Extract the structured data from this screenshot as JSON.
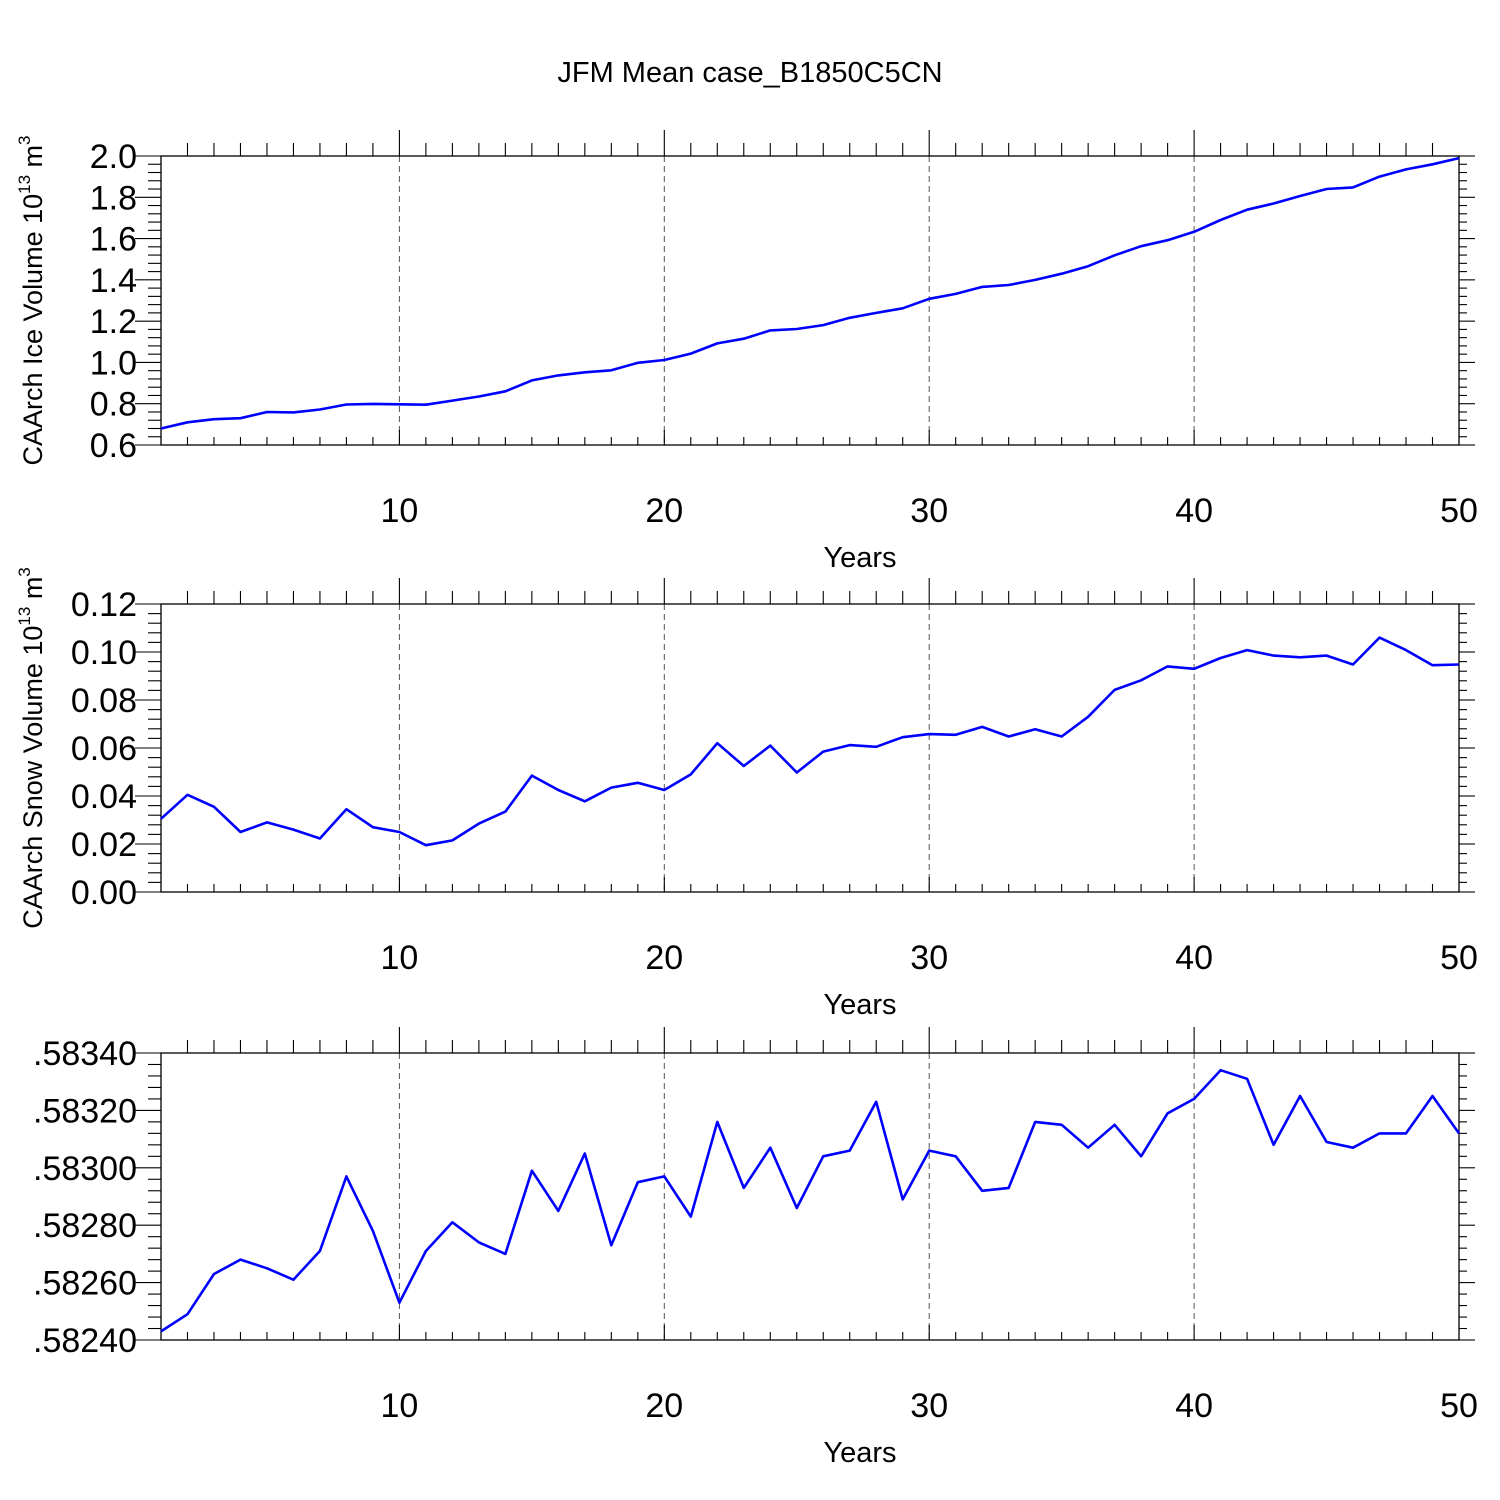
{
  "title": "JFM Mean case_B1850C5CN",
  "colors": {
    "series": "#0000ff",
    "axis": "#000000",
    "grid": "#555555"
  },
  "chart_data": [
    {
      "type": "line",
      "ylabel": "CAArch Ice Volume 10",
      "ylabel_sup": "13",
      "ylabel_unit": " m",
      "ylabel_unit_sup": "3",
      "xlabel": "Years",
      "xlim": [
        1,
        50
      ],
      "ylim": [
        0.6,
        2.0
      ],
      "xticks": [
        10,
        20,
        30,
        40,
        50
      ],
      "xtick_labels": [
        "10",
        "20",
        "30",
        "40",
        "50"
      ],
      "yticks": [
        0.6,
        0.8,
        1.0,
        1.2,
        1.4,
        1.6,
        1.8,
        2.0
      ],
      "ytick_labels": [
        "0.6",
        "0.8",
        "1.0",
        "1.2",
        "1.4",
        "1.6",
        "1.8",
        "2.0"
      ],
      "grid": "vertical dashed at major x ticks",
      "x": [
        1,
        2,
        3,
        4,
        5,
        6,
        7,
        8,
        9,
        10,
        11,
        12,
        13,
        14,
        15,
        16,
        17,
        18,
        19,
        20,
        21,
        22,
        23,
        24,
        25,
        26,
        27,
        28,
        29,
        30,
        31,
        32,
        33,
        34,
        35,
        36,
        37,
        38,
        39,
        40,
        41,
        42,
        43,
        44,
        45,
        46,
        47,
        48,
        49,
        50
      ],
      "values": [
        0.68,
        0.71,
        0.725,
        0.73,
        0.76,
        0.758,
        0.772,
        0.796,
        0.799,
        0.797,
        0.795,
        0.815,
        0.835,
        0.86,
        0.913,
        0.937,
        0.952,
        0.962,
        0.998,
        1.012,
        1.043,
        1.092,
        1.115,
        1.155,
        1.162,
        1.181,
        1.216,
        1.24,
        1.262,
        1.308,
        1.332,
        1.366,
        1.375,
        1.4,
        1.43,
        1.466,
        1.519,
        1.563,
        1.592,
        1.633,
        1.69,
        1.74,
        1.77,
        1.806,
        1.84,
        1.848,
        1.9,
        1.935,
        1.96,
        1.99
      ]
    },
    {
      "type": "line",
      "ylabel": "CAArch Snow Volume 10",
      "ylabel_sup": "13",
      "ylabel_unit": " m",
      "ylabel_unit_sup": "3",
      "xlabel": "Years",
      "xlim": [
        1,
        50
      ],
      "ylim": [
        0.0,
        0.12
      ],
      "xticks": [
        10,
        20,
        30,
        40,
        50
      ],
      "xtick_labels": [
        "10",
        "20",
        "30",
        "40",
        "50"
      ],
      "yticks": [
        0.0,
        0.02,
        0.04,
        0.06,
        0.08,
        0.1,
        0.12
      ],
      "ytick_labels": [
        "0.00",
        "0.02",
        "0.04",
        "0.06",
        "0.08",
        "0.10",
        "0.12"
      ],
      "grid": "vertical dashed at major x ticks",
      "x": [
        1,
        2,
        3,
        4,
        5,
        6,
        7,
        8,
        9,
        10,
        11,
        12,
        13,
        14,
        15,
        16,
        17,
        18,
        19,
        20,
        21,
        22,
        23,
        24,
        25,
        26,
        27,
        28,
        29,
        30,
        31,
        32,
        33,
        34,
        35,
        36,
        37,
        38,
        39,
        40,
        41,
        42,
        43,
        44,
        45,
        46,
        47,
        48,
        49,
        50
      ],
      "values": [
        0.0305,
        0.0405,
        0.0355,
        0.025,
        0.029,
        0.026,
        0.0223,
        0.0345,
        0.027,
        0.025,
        0.0195,
        0.0215,
        0.0285,
        0.0335,
        0.0485,
        0.0425,
        0.0378,
        0.0435,
        0.0455,
        0.0425,
        0.049,
        0.062,
        0.0525,
        0.061,
        0.0498,
        0.0585,
        0.0612,
        0.0605,
        0.0645,
        0.0658,
        0.0655,
        0.0688,
        0.0648,
        0.0678,
        0.0648,
        0.073,
        0.0842,
        0.0882,
        0.094,
        0.093,
        0.0975,
        0.1008,
        0.0985,
        0.0978,
        0.0985,
        0.0948,
        0.106,
        0.1008,
        0.0945,
        0.0948
      ]
    },
    {
      "type": "line",
      "ylabel": "",
      "xlabel": "Years",
      "xlim": [
        1,
        50
      ],
      "ylim": [
        0.5824,
        0.5834
      ],
      "xticks": [
        10,
        20,
        30,
        40,
        50
      ],
      "xtick_labels": [
        "10",
        "20",
        "30",
        "40",
        "50"
      ],
      "yticks": [
        0.5824,
        0.5826,
        0.5828,
        0.583,
        0.5832,
        0.5834
      ],
      "ytick_labels": [
        ".58240",
        ".58260",
        ".58280",
        ".58300",
        ".58320",
        ".58340"
      ],
      "grid": "vertical dashed at major x ticks",
      "x": [
        1,
        2,
        3,
        4,
        5,
        6,
        7,
        8,
        9,
        10,
        11,
        12,
        13,
        14,
        15,
        16,
        17,
        18,
        19,
        20,
        21,
        22,
        23,
        24,
        25,
        26,
        27,
        28,
        29,
        30,
        31,
        32,
        33,
        34,
        35,
        36,
        37,
        38,
        39,
        40,
        41,
        42,
        43,
        44,
        45,
        46,
        47,
        48,
        49,
        50
      ],
      "values": [
        0.58243,
        0.58249,
        0.58263,
        0.58268,
        0.58265,
        0.58261,
        0.58271,
        0.58297,
        0.58278,
        0.58253,
        0.58271,
        0.58281,
        0.58274,
        0.5827,
        0.58299,
        0.58285,
        0.58305,
        0.58273,
        0.58295,
        0.58297,
        0.58283,
        0.58316,
        0.58293,
        0.58307,
        0.58286,
        0.58304,
        0.58306,
        0.58323,
        0.58289,
        0.58306,
        0.58304,
        0.58292,
        0.58293,
        0.58316,
        0.58315,
        0.58307,
        0.58315,
        0.58304,
        0.58319,
        0.58324,
        0.58334,
        0.58331,
        0.58308,
        0.58325,
        0.58309,
        0.58307,
        0.58312,
        0.58312,
        0.58325,
        0.58312
      ]
    }
  ]
}
